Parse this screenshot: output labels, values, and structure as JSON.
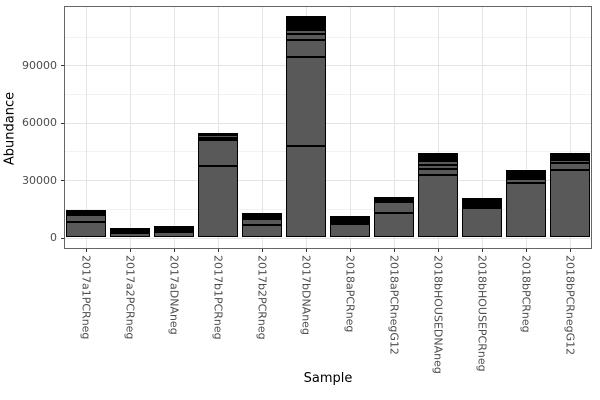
{
  "chart_data": {
    "type": "bar",
    "stacked": true,
    "title": "",
    "xlabel": "Sample",
    "ylabel": "Abundance",
    "legend": "none",
    "grid": true,
    "categories": [
      "2017a1PCRneg",
      "2017a2PCRneg",
      "2017aDNAneg",
      "2017b1PCRneg",
      "2017b2PCRneg",
      "2017bDNAneg",
      "2018aPCRneg",
      "2018aPCRnegG12",
      "2018bHOUSEDNAneg",
      "2018bHOUSEPCRneg",
      "2018bPCRneg",
      "2018bPCRnegG12"
    ],
    "totals": [
      14000,
      4400,
      5800,
      54600,
      12600,
      115500,
      10500,
      21000,
      44100,
      20500,
      34700,
      43800
    ],
    "segments": [
      [
        7900,
        3700,
        900,
        800,
        700
      ],
      [
        2500,
        800,
        600,
        500
      ],
      [
        3100,
        900,
        600,
        600,
        600
      ],
      [
        37300,
        13700,
        1200,
        1200,
        1200
      ],
      [
        6300,
        3600,
        900,
        900,
        900
      ],
      [
        47800,
        46700,
        8900,
        3200,
        2100,
        1000,
        1000,
        1000,
        1000,
        1000,
        900,
        900
      ],
      [
        6800,
        1100,
        800,
        700,
        600,
        500
      ],
      [
        12600,
        5800,
        1000,
        900,
        700
      ],
      [
        32600,
        3100,
        2100,
        2100,
        800,
        800,
        800,
        900,
        900
      ],
      [
        15200,
        1100,
        900,
        900,
        900,
        800,
        700
      ],
      [
        28400,
        2100,
        1000,
        900,
        900,
        700,
        700
      ],
      [
        35200,
        3700,
        1700,
        900,
        900,
        700,
        700
      ]
    ],
    "yticks": [
      0,
      30000,
      60000,
      90000
    ],
    "ytick_labels": [
      "0",
      "30000",
      "60000",
      "90000"
    ],
    "yticks_minor": [
      15000,
      45000,
      75000,
      105000
    ],
    "ylim": [
      0,
      121275
    ],
    "colors": {
      "bar_fill": "#595959",
      "bar_border": "#000000",
      "grid_major": "#e4e4e4",
      "grid_minor": "#f2f2f2",
      "panel_border": "#666666",
      "axis_text": "#4d4d4d",
      "axis_title": "#000000",
      "background": "#ffffff"
    }
  }
}
